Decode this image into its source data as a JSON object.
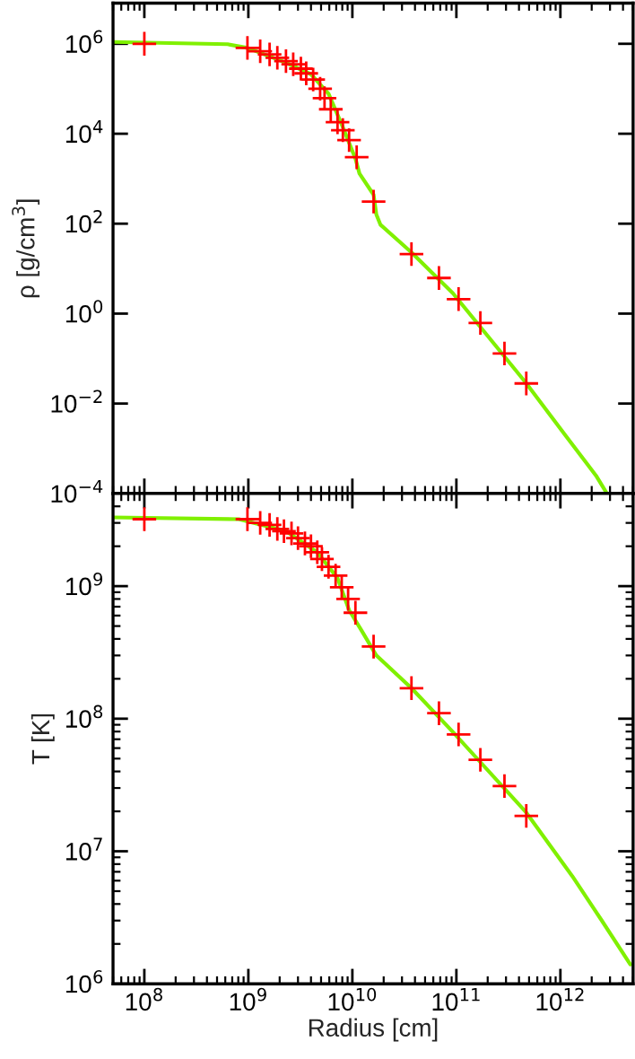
{
  "chart_data": [
    {
      "type": "scatter",
      "ylabel": "ρ [g/cm$^{3}$]",
      "log": "xy",
      "xlim": [
        50000000.0,
        5000000000000.0
      ],
      "ylim": [
        0.0001,
        8000000.0
      ],
      "xticks": [
        {
          "value": 100000000.0,
          "label": null
        },
        {
          "value": 1000000000.0,
          "label": null
        },
        {
          "value": 10000000000.0,
          "label": null
        },
        {
          "value": 100000000000.0,
          "label": null
        },
        {
          "value": 1000000000000.0,
          "label": null
        }
      ],
      "yticks": [
        {
          "value": 0.0001,
          "label": "10$^{−4}$"
        },
        {
          "value": 0.01,
          "label": "10$^{−2}$"
        },
        {
          "value": 1,
          "label": "10$^{0}$"
        },
        {
          "value": 100,
          "label": "10$^{2}$"
        },
        {
          "value": 10000.0,
          "label": "10$^{4}$"
        },
        {
          "value": 1000000.0,
          "label": "10$^{6}$"
        }
      ],
      "tick_labels": "y",
      "grid": false,
      "legend": false,
      "series": [
        {
          "type": "line",
          "color": "#80f000",
          "line_style": "solid",
          "marker": "none",
          "x": [
            50000000.0,
            630000000.0,
            980000000.0,
            2300000000.0,
            4000000000.0,
            5900000000.0,
            8100000000.0,
            10700000000.0,
            11700000000.0,
            16000000000.0,
            17000000000.0,
            18600000000.0,
            37000000000.0,
            93000000000.0,
            460000000000.0,
            1150000000000.0,
            2200000000000.0,
            2800000000000.0
          ],
          "values": [
            1100000.0,
            980000.0,
            810000.0,
            380000.0,
            210000.0,
            78000.0,
            14000.0,
            2800.0,
            1300.0,
            440,
            160,
            95,
            23,
            2.8,
            0.03,
            0.0018,
            0.00025,
            0.0001
          ]
        },
        {
          "color": "#ff0000",
          "marker": "cross",
          "x": [
            100000000.0,
            980000000.0,
            1300000000.0,
            1600000000.0,
            1900000000.0,
            2300000000.0,
            2700000000.0,
            3200000000.0,
            3600000000.0,
            4200000000.0,
            4900000000.0,
            5400000000.0,
            6200000000.0,
            7200000000.0,
            8100000000.0,
            9300000000.0,
            11000000000.0,
            16000000000.0,
            37000000000.0,
            68000000000.0,
            105000000000.0,
            170000000000.0,
            290000000000.0,
            470000000000.0
          ],
          "values": [
            1000000.0,
            810000.0,
            680000.0,
            580000.0,
            490000.0,
            410000.0,
            350000.0,
            280000.0,
            220000.0,
            160000.0,
            100000.0,
            62000.0,
            35000.0,
            18000.0,
            12000.0,
            7200.0,
            3000.0,
            310,
            21,
            6.2,
            2.1,
            0.62,
            0.13,
            0.028
          ]
        }
      ]
    },
    {
      "type": "scatter",
      "xlabel": "Radius [cm]",
      "ylabel": "T [K]",
      "log": "xy",
      "xlim": [
        50000000.0,
        5000000000000.0
      ],
      "ylim": [
        1000000.0,
        5000000000.0
      ],
      "xticks": [
        {
          "value": 100000000.0,
          "label": "10$^{8}$"
        },
        {
          "value": 1000000000.0,
          "label": "10$^{9}$"
        },
        {
          "value": 10000000000.0,
          "label": "10$^{10}$"
        },
        {
          "value": 100000000000.0,
          "label": "10$^{11}$"
        },
        {
          "value": 1000000000000.0,
          "label": "10$^{12}$"
        }
      ],
      "yticks": [
        {
          "value": 1000000.0,
          "label": "10$^{6}$"
        },
        {
          "value": 10000000.0,
          "label": "10$^{7}$"
        },
        {
          "value": 100000000.0,
          "label": "10$^{8}$"
        },
        {
          "value": 1000000000.0,
          "label": "10$^{9}$"
        }
      ],
      "grid": false,
      "legend": false,
      "series": [
        {
          "type": "line",
          "color": "#80f000",
          "line_style": "solid",
          "marker": "none",
          "x": [
            50000000.0,
            810000000.0,
            2300000000.0,
            4600000000.0,
            7200000000.0,
            9300000000.0,
            12300000000.0,
            17000000000.0,
            37000000000.0,
            93000000000.0,
            460000000000.0,
            1300000000000.0,
            2500000000000.0,
            4700000000000.0
          ],
          "values": [
            3300000000.0,
            3200000000.0,
            2600000000.0,
            1800000000.0,
            1150000000.0,
            660000000.0,
            460000000.0,
            300000000.0,
            170000000.0,
            79000000.0,
            20000000.0,
            6500000.0,
            3000000.0,
            1400000.0
          ]
        },
        {
          "color": "#ff0000",
          "marker": "cross",
          "x": [
            100000000.0,
            980000000.0,
            1300000000.0,
            1600000000.0,
            1900000000.0,
            2200000000.0,
            2600000000.0,
            3000000000.0,
            3500000000.0,
            4000000000.0,
            4600000000.0,
            5100000000.0,
            5900000000.0,
            6900000000.0,
            7900000000.0,
            9100000000.0,
            10700000000.0,
            16000000000.0,
            37000000000.0,
            68000000000.0,
            105000000000.0,
            170000000000.0,
            290000000000.0,
            470000000000.0
          ],
          "values": [
            3200000000.0,
            3200000000.0,
            3000000000.0,
            2900000000.0,
            2700000000.0,
            2600000000.0,
            2500000000.0,
            2300000000.0,
            2100000000.0,
            2000000000.0,
            1800000000.0,
            1600000000.0,
            1400000000.0,
            1200000000.0,
            980000000.0,
            800000000.0,
            630000000.0,
            350000000.0,
            170000000.0,
            110000000.0,
            76000000.0,
            49000000.0,
            31000000.0,
            18500000.0
          ]
        }
      ]
    }
  ]
}
